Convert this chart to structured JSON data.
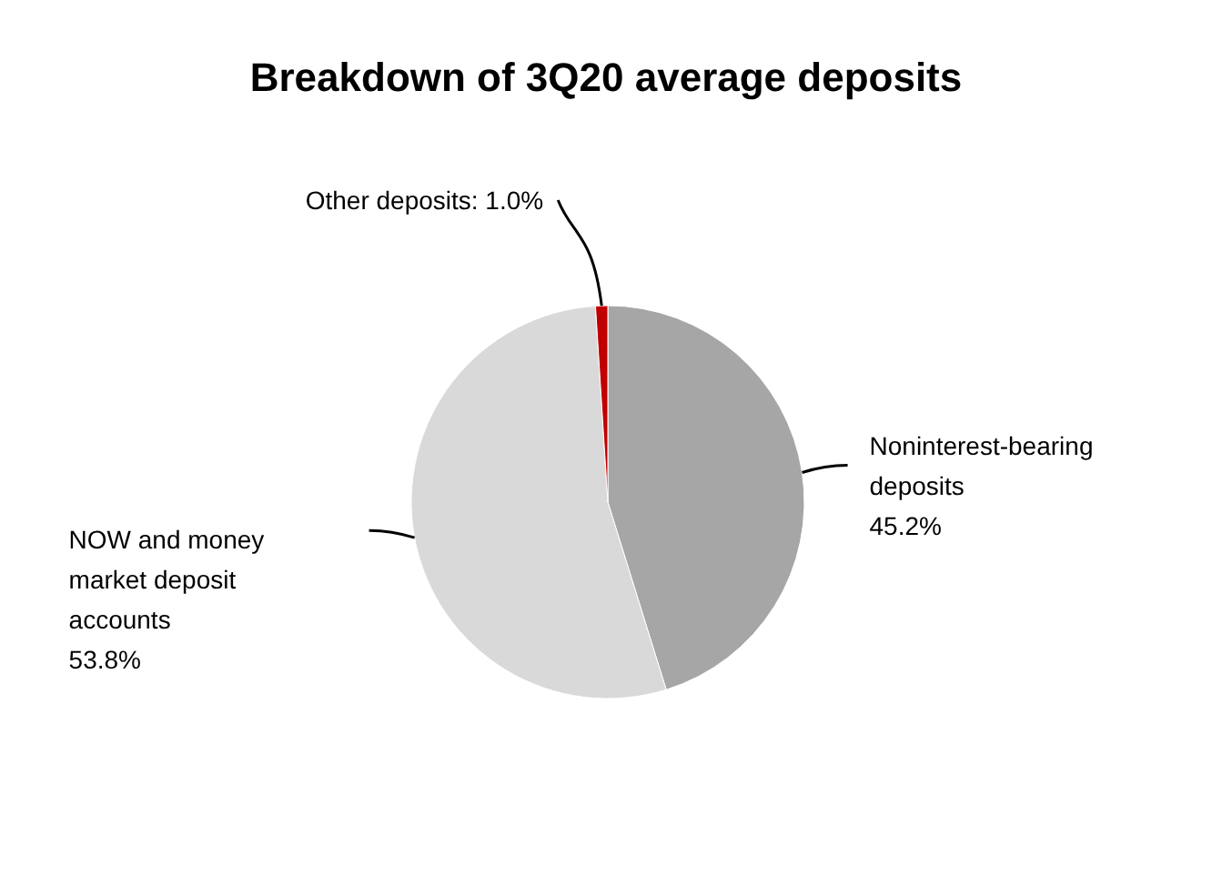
{
  "chart_data": {
    "type": "pie",
    "title": "Breakdown of 3Q20 average deposits",
    "categories": [
      "Noninterest-bearing deposits",
      "NOW and money market deposit accounts",
      "Other deposits"
    ],
    "values": [
      45.2,
      53.8,
      1.0
    ],
    "colors": [
      "#a6a6a6",
      "#d9d9d9",
      "#c00000"
    ],
    "value_labels": [
      "45.2%",
      "53.8%",
      "1.0%"
    ]
  }
}
